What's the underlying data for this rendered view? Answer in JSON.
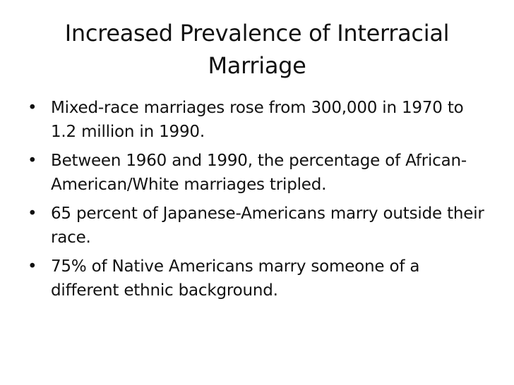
{
  "slide": {
    "title": "Increased Prevalence of Interracial Marriage",
    "bullet_symbol": "•",
    "bullets": [
      "Mixed-race marriages rose from 300,000 in 1970 to 1.2 million in 1990.",
      "Between 1960 and 1990, the percentage of African-American/White marriages tripled.",
      "65 percent of Japanese-Americans marry outside their race.",
      "75% of Native Americans marry someone of a different ethnic background."
    ]
  }
}
